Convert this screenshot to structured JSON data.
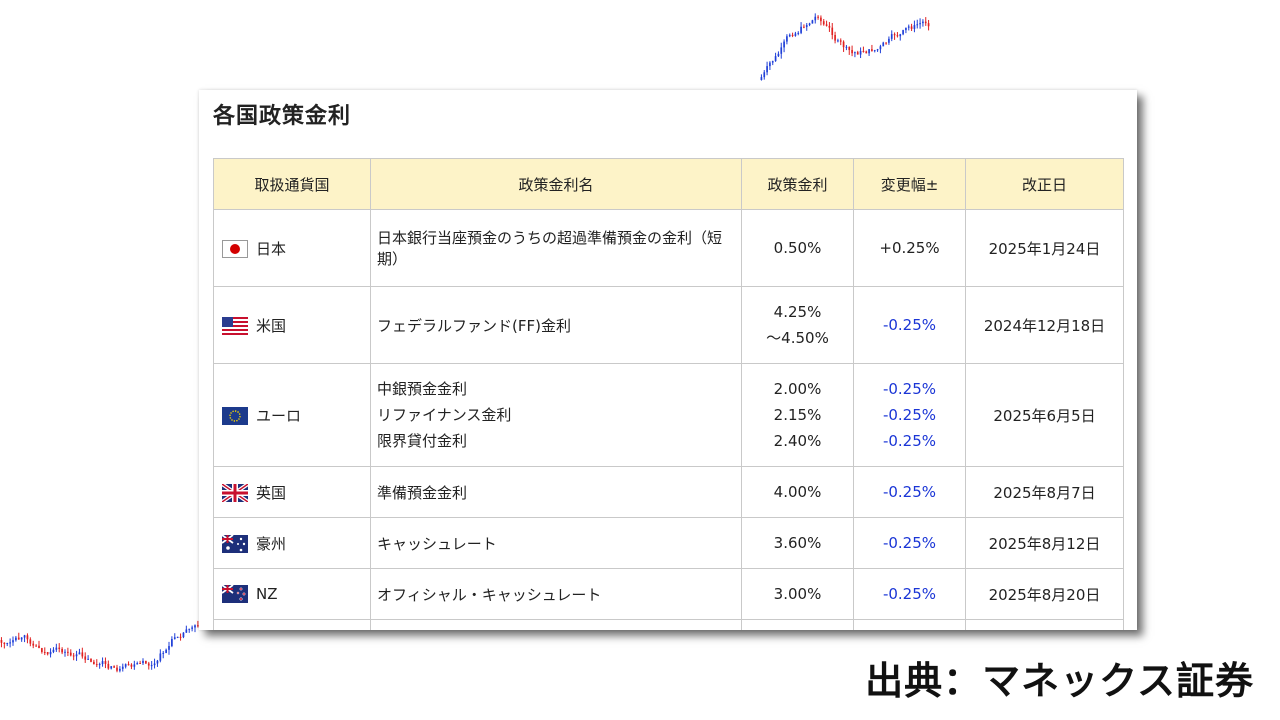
{
  "card": {
    "title": "各国政策金利"
  },
  "table": {
    "headers": [
      "取扱通貨国",
      "政策金利名",
      "政策金利",
      "変更幅±",
      "改正日"
    ],
    "rows": [
      {
        "country": "日本",
        "flag_icon": "japan-flag-icon",
        "rate_name": "日本銀行当座預金のうちの超過準備預金の金利（短期）",
        "rate": "0.50%",
        "change": "+0.25%",
        "date": "2025年1月24日"
      },
      {
        "country": "米国",
        "flag_icon": "us-flag-icon",
        "rate_name": "フェデラルファンド(FF)金利",
        "rate_line1": "4.25%",
        "rate_line2": "～4.50%",
        "change": "-0.25%",
        "date": "2024年12月18日"
      },
      {
        "country": "ユーロ",
        "flag_icon": "eu-flag-icon",
        "rate_names": [
          "中銀預金金利",
          "リファイナンス金利",
          "限界貸付金利"
        ],
        "rates": [
          "2.00%",
          "2.15%",
          "2.40%"
        ],
        "changes": [
          "-0.25%",
          "-0.25%",
          "-0.25%"
        ],
        "date": "2025年6月5日"
      },
      {
        "country": "英国",
        "flag_icon": "uk-flag-icon",
        "rate_name": "準備預金金利",
        "rate": "4.00%",
        "change": "-0.25%",
        "date": "2025年8月7日"
      },
      {
        "country": "豪州",
        "flag_icon": "australia-flag-icon",
        "rate_name": "キャッシュレート",
        "rate": "3.60%",
        "change": "-0.25%",
        "date": "2025年8月12日"
      },
      {
        "country": "NZ",
        "flag_icon": "new-zealand-flag-icon",
        "rate_name": "オフィシャル・キャッシュレート",
        "rate": "3.00%",
        "change": "-0.25%",
        "date": "2025年8月20日"
      }
    ]
  },
  "source": "出典：マネックス証券",
  "colors": {
    "header_bg": "#fdf3c8",
    "negative_change": "#1a35d6",
    "candle_up": "#1f3fd8",
    "candle_down": "#e02020"
  }
}
